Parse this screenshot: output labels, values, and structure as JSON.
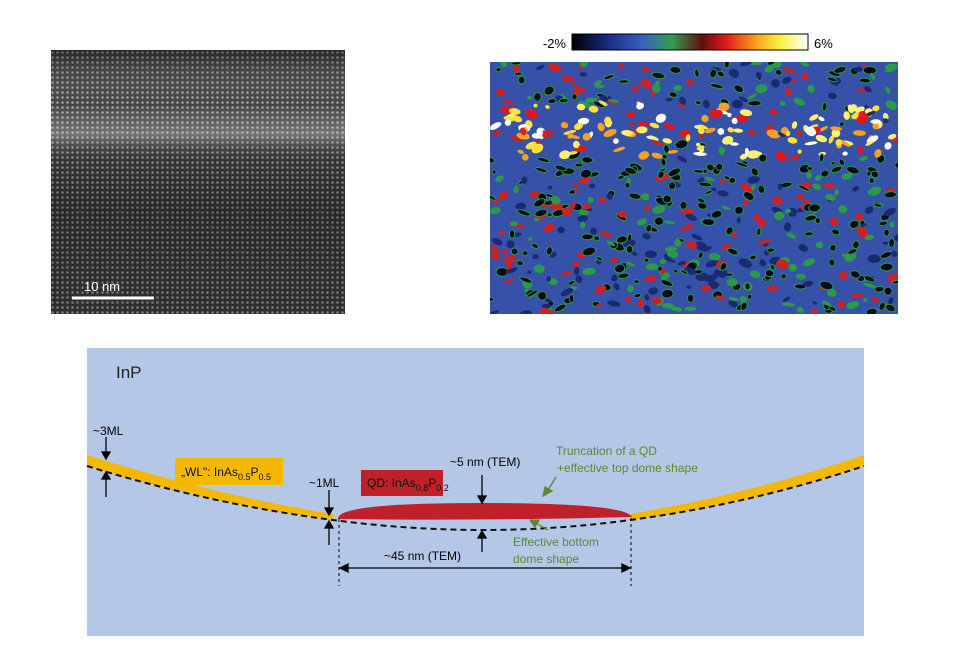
{
  "tem_image": {
    "scale_bar": "10 nm"
  },
  "strain_map": {
    "colorbar_min": "-2%",
    "colorbar_max": "6%"
  },
  "schematic": {
    "matrix": "InP",
    "wl_thickness": "~3ML",
    "wl_label": {
      "prefix": "„WL\": InAs",
      "sub1": "0.5",
      "mid": "P",
      "sub2": "0.5"
    },
    "min_thickness": "~1ML",
    "qd_label": {
      "prefix": "QD: InAs",
      "sub1": "0.8",
      "mid": "P",
      "sub2": "0.2"
    },
    "qd_height": "~5 nm (TEM)",
    "top_note": [
      "Truncation of a QD",
      "+effective top dome shape"
    ],
    "bottom_note": [
      "Effective bottom",
      "dome shape"
    ],
    "qd_width": "~45 nm (TEM)"
  }
}
